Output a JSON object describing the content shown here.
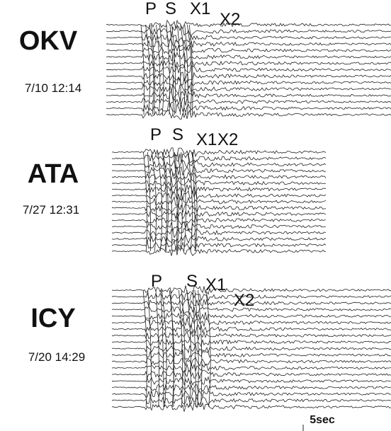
{
  "panels": [
    {
      "station": "OKV",
      "date": "7/10 12:14",
      "phases": [
        "P",
        "S",
        "X1",
        "X2"
      ]
    },
    {
      "station": "ATA",
      "date": "7/27 12:31",
      "phases": [
        "P",
        "S",
        "X1",
        "X2"
      ]
    },
    {
      "station": "ICY",
      "date": "7/20 14:29",
      "phases": [
        "P",
        "S",
        "X1",
        "X2"
      ]
    }
  ],
  "scale_label": "5sec"
}
